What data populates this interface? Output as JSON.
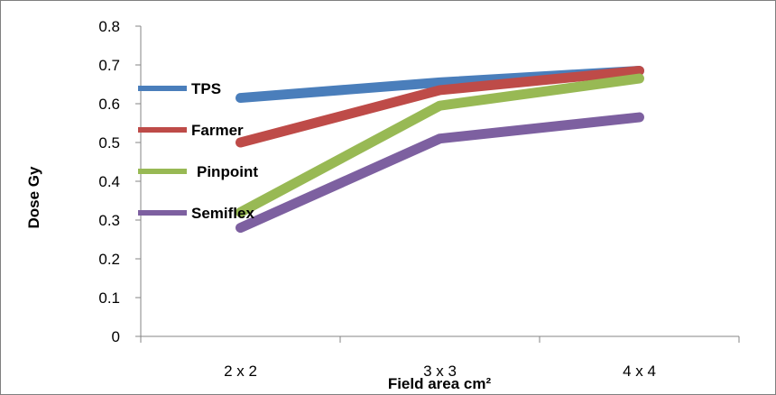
{
  "chart_data": {
    "type": "line",
    "categories": [
      "2 x 2",
      "3 x 3",
      "4 x 4"
    ],
    "xlabel": "Field area cm²",
    "ylabel": "Dose Gy",
    "ylim": [
      0,
      0.8
    ],
    "yticks": [
      "0",
      "0.1",
      "0.2",
      "0.3",
      "0.4",
      "0.5",
      "0.6",
      "0.7",
      "0.8"
    ],
    "grid": false,
    "legend_position": "left, inside plot",
    "series": [
      {
        "name": "TPS",
        "color": "#4a7ebb",
        "values": [
          0.615,
          0.655,
          0.685
        ]
      },
      {
        "name": "Farmer",
        "color": "#be4b48",
        "values": [
          0.5,
          0.635,
          0.685
        ]
      },
      {
        "name": "Pinpoint",
        "color": "#98b954",
        "values": [
          0.32,
          0.595,
          0.665
        ]
      },
      {
        "name": "Semiflex",
        "color": "#7d60a0",
        "values": [
          0.28,
          0.51,
          0.565
        ]
      }
    ]
  }
}
